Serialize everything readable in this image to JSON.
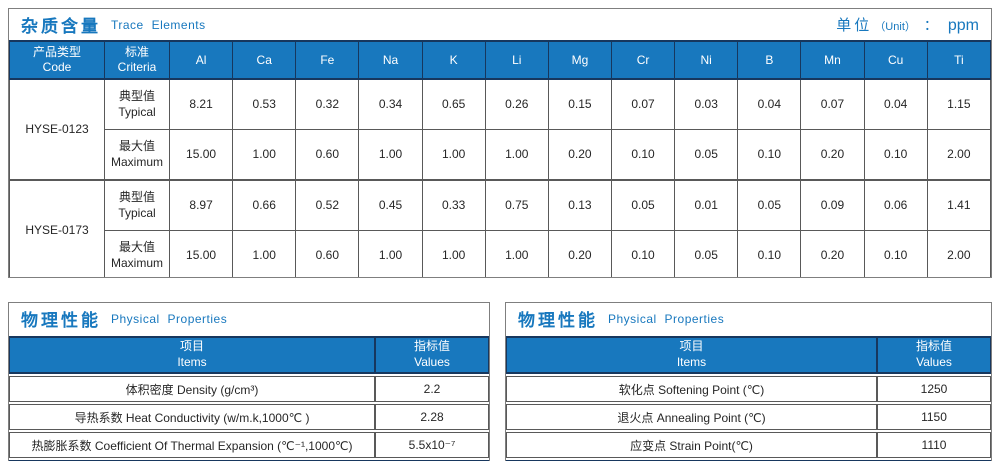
{
  "colors": {
    "accent_blue": "#1878BE",
    "header_navy": "#17375E",
    "grid_gray": "#595959",
    "outer_gray": "#7f7f7f"
  },
  "trace": {
    "title_cn": "杂质含量",
    "title_en": "Trace Elements",
    "unit_cn": "单位",
    "unit_paren": "（Unit）",
    "unit_colon": "：",
    "unit_value": "ppm",
    "col1_cn": "产品类型",
    "col1_en": "Code",
    "col2_cn": "标准",
    "col2_en": "Criteria",
    "elements": [
      "Al",
      "Ca",
      "Fe",
      "Na",
      "K",
      "Li",
      "Mg",
      "Cr",
      "Ni",
      "B",
      "Mn",
      "Cu",
      "Ti"
    ],
    "products": [
      {
        "code": "HYSE-0123",
        "rows": [
          {
            "label_cn": "典型值",
            "label_en": "Typical",
            "values": [
              "8.21",
              "0.53",
              "0.32",
              "0.34",
              "0.65",
              "0.26",
              "0.15",
              "0.07",
              "0.03",
              "0.04",
              "0.07",
              "0.04",
              "1.15"
            ]
          },
          {
            "label_cn": "最大值",
            "label_en": "Maximum",
            "values": [
              "15.00",
              "1.00",
              "0.60",
              "1.00",
              "1.00",
              "1.00",
              "0.20",
              "0.10",
              "0.05",
              "0.10",
              "0.20",
              "0.10",
              "2.00"
            ]
          }
        ]
      },
      {
        "code": "HYSE-0173",
        "rows": [
          {
            "label_cn": "典型值",
            "label_en": "Typical",
            "values": [
              "8.97",
              "0.66",
              "0.52",
              "0.45",
              "0.33",
              "0.75",
              "0.13",
              "0.05",
              "0.01",
              "0.05",
              "0.09",
              "0.06",
              "1.41"
            ]
          },
          {
            "label_cn": "最大值",
            "label_en": "Maximum",
            "values": [
              "15.00",
              "1.00",
              "0.60",
              "1.00",
              "1.00",
              "1.00",
              "0.20",
              "0.10",
              "0.05",
              "0.10",
              "0.20",
              "0.10",
              "2.00"
            ]
          }
        ]
      }
    ]
  },
  "physical_left": {
    "title_cn": "物理性能",
    "title_en": "Physical Properties",
    "items_cn": "项目",
    "items_en": "Items",
    "values_cn": "指标值",
    "values_en": "Values",
    "rows": [
      {
        "item": "体积密度 Density (g/cm³)",
        "value": "2.2"
      },
      {
        "item": "导热系数 Heat Conductivity (w/m.k,1000℃ )",
        "value": "2.28"
      },
      {
        "item": "热膨胀系数 Coefficient Of Thermal Expansion (℃⁻¹,1000℃)",
        "value": "5.5x10⁻⁷"
      }
    ]
  },
  "physical_right": {
    "title_cn": "物理性能",
    "title_en": "Physical Properties",
    "items_cn": "项目",
    "items_en": "Items",
    "values_cn": "指标值",
    "values_en": "Values",
    "rows": [
      {
        "item": "软化点 Softening Point (℃)",
        "value": "1250"
      },
      {
        "item": "退火点 Annealing Point (℃)",
        "value": "1150"
      },
      {
        "item": "应变点 Strain Point(℃)",
        "value": "1110"
      }
    ]
  }
}
